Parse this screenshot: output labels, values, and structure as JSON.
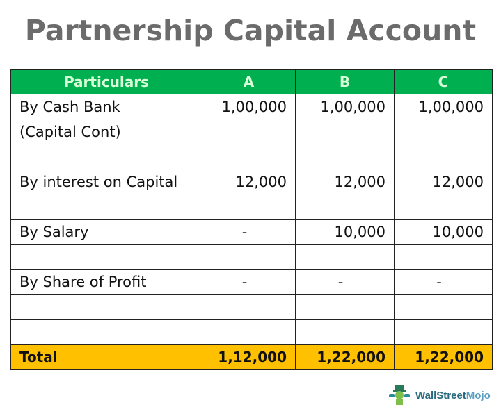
{
  "title": "Partnership Capital Account",
  "table": {
    "headers": [
      "Particulars",
      "A",
      "B",
      "C"
    ],
    "rows": [
      [
        "By Cash Bank",
        "1,00,000",
        "1,00,000",
        "1,00,000"
      ],
      [
        "(Capital Cont)",
        "",
        "",
        ""
      ],
      [
        "",
        "",
        "",
        ""
      ],
      [
        "By interest on Capital",
        "12,000",
        "12,000",
        "12,000"
      ],
      [
        "",
        "",
        "",
        ""
      ],
      [
        "By Salary",
        "-",
        "10,000",
        "10,000"
      ],
      [
        "",
        "",
        "",
        ""
      ],
      [
        "By Share of Profit",
        "-",
        "-",
        "-"
      ],
      [
        "",
        "",
        "",
        ""
      ],
      [
        "",
        "",
        "",
        ""
      ]
    ],
    "total": [
      "Total",
      "1,12,000",
      "1,22,000",
      "1,22,000"
    ]
  },
  "logo": {
    "part1": "WallStreet",
    "part2": "Mojo",
    "icon": "mojo-mascot-icon"
  },
  "colors": {
    "header": "#00b050",
    "total": "#ffc000",
    "title": "#6b6b6b"
  }
}
